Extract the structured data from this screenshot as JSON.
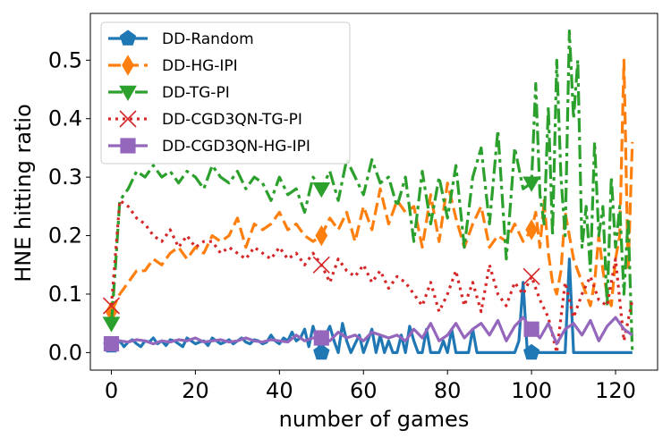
{
  "chart_data": {
    "type": "line",
    "xlabel": "number of games",
    "ylabel": "HNE hitting ratio",
    "xlim": [
      -5,
      130
    ],
    "ylim": [
      -0.03,
      0.58
    ],
    "xticks": [
      0,
      20,
      40,
      60,
      80,
      100,
      120
    ],
    "yticks": [
      0.0,
      0.1,
      0.2,
      0.3,
      0.4,
      0.5
    ],
    "ytick_labels": [
      "0.0",
      "0.1",
      "0.2",
      "0.3",
      "0.4",
      "0.5"
    ],
    "legend_position": "upper-left",
    "series": [
      {
        "name": "DD-Random",
        "color": "#1f77b4",
        "linestyle": "solid",
        "marker": "pentagon",
        "marker_x": [
          0,
          50,
          100
        ],
        "x": [
          0,
          1,
          2,
          3,
          4,
          5,
          6,
          7,
          8,
          9,
          10,
          11,
          12,
          13,
          14,
          15,
          16,
          17,
          18,
          19,
          20,
          21,
          22,
          23,
          24,
          25,
          26,
          27,
          28,
          29,
          30,
          31,
          32,
          33,
          34,
          35,
          36,
          37,
          38,
          39,
          40,
          41,
          42,
          43,
          44,
          45,
          46,
          47,
          48,
          49,
          50,
          51,
          52,
          53,
          54,
          55,
          56,
          57,
          58,
          59,
          60,
          61,
          62,
          63,
          64,
          65,
          66,
          67,
          68,
          69,
          70,
          71,
          72,
          73,
          74,
          75,
          76,
          77,
          78,
          79,
          80,
          81,
          82,
          83,
          84,
          85,
          86,
          87,
          88,
          89,
          90,
          91,
          92,
          93,
          94,
          95,
          96,
          97,
          98,
          99,
          100,
          101,
          102,
          103,
          104,
          105,
          106,
          107,
          108,
          109,
          110,
          111,
          112,
          113,
          114,
          115,
          116,
          117,
          118,
          119,
          120,
          121,
          122,
          123,
          124
        ],
        "values": [
          0.012,
          0.015,
          0.02,
          0.01,
          0.018,
          0.022,
          0.015,
          0.01,
          0.02,
          0.018,
          0.025,
          0.015,
          0.02,
          0.012,
          0.022,
          0.02,
          0.015,
          0.01,
          0.025,
          0.02,
          0.015,
          0.018,
          0.02,
          0.012,
          0.025,
          0.02,
          0.015,
          0.018,
          0.022,
          0.015,
          0.02,
          0.025,
          0.018,
          0.015,
          0.022,
          0.02,
          0.015,
          0.018,
          0.03,
          0.02,
          0.015,
          0.025,
          0.02,
          0.035,
          0.02,
          0.025,
          0.04,
          0.01,
          0.045,
          0.02,
          0.0,
          0.03,
          0.045,
          0.02,
          0.0,
          0.05,
          0.02,
          0.0,
          0.015,
          0.03,
          0.0,
          0.02,
          0.04,
          0.0,
          0.03,
          0.0,
          0.02,
          0.0,
          0.0,
          0.03,
          0.0,
          0.045,
          0.02,
          0.0,
          0.0,
          0.04,
          0.0,
          0.0,
          0.0,
          0.02,
          0.0,
          0.04,
          0.0,
          0.0,
          0.0,
          0.0,
          0.04,
          0.0,
          0.0,
          0.0,
          0.0,
          0.0,
          0.0,
          0.0,
          0.0,
          0.0,
          0.0,
          0.02,
          0.12,
          0.0,
          0.0,
          0.0,
          0.0,
          0.0,
          0.0,
          0.0,
          0.0,
          0.0,
          0.0,
          0.16,
          0.0,
          0.0,
          0.0,
          0.0,
          0.0,
          0.0,
          0.0,
          0.0,
          0.0,
          0.0,
          0.0,
          0.0,
          0.0,
          0.0,
          0.0
        ]
      },
      {
        "name": "DD-HG-IPI",
        "color": "#ff7f0e",
        "linestyle": "dashed",
        "marker": "thin_diamond",
        "marker_x": [
          0,
          50,
          100
        ],
        "x": [
          0,
          2,
          4,
          6,
          8,
          10,
          12,
          14,
          16,
          18,
          20,
          22,
          24,
          26,
          28,
          30,
          32,
          34,
          36,
          38,
          40,
          42,
          44,
          46,
          48,
          50,
          52,
          54,
          56,
          58,
          60,
          62,
          64,
          66,
          68,
          70,
          72,
          74,
          76,
          78,
          80,
          82,
          84,
          86,
          88,
          90,
          92,
          94,
          96,
          98,
          100,
          101,
          102,
          103,
          104,
          105,
          106,
          107,
          108,
          109,
          110,
          111,
          112,
          113,
          114,
          115,
          116,
          117,
          118,
          119,
          120,
          121,
          122,
          123,
          124
        ],
        "values": [
          0.07,
          0.1,
          0.12,
          0.14,
          0.14,
          0.16,
          0.15,
          0.17,
          0.18,
          0.16,
          0.18,
          0.17,
          0.2,
          0.19,
          0.2,
          0.23,
          0.18,
          0.22,
          0.21,
          0.22,
          0.24,
          0.21,
          0.22,
          0.2,
          0.19,
          0.2,
          0.23,
          0.21,
          0.24,
          0.19,
          0.25,
          0.21,
          0.28,
          0.22,
          0.26,
          0.24,
          0.25,
          0.18,
          0.27,
          0.19,
          0.29,
          0.23,
          0.18,
          0.22,
          0.25,
          0.18,
          0.2,
          0.19,
          0.22,
          0.19,
          0.21,
          0.24,
          0.18,
          0.26,
          0.17,
          0.12,
          0.1,
          0.14,
          0.24,
          0.2,
          0.16,
          0.14,
          0.12,
          0.1,
          0.08,
          0.12,
          0.2,
          0.14,
          0.1,
          0.08,
          0.16,
          0.2,
          0.5,
          0.14,
          0.36
        ]
      },
      {
        "name": "DD-TG-PI",
        "color": "#2ca02c",
        "linestyle": "dashdot",
        "marker": "triangle_down",
        "marker_x": [
          0,
          50,
          100
        ],
        "x": [
          0,
          1,
          2,
          4,
          6,
          8,
          10,
          12,
          14,
          16,
          18,
          20,
          22,
          24,
          26,
          28,
          30,
          32,
          34,
          36,
          38,
          40,
          42,
          44,
          46,
          48,
          50,
          52,
          54,
          56,
          58,
          60,
          62,
          64,
          66,
          68,
          70,
          72,
          74,
          76,
          78,
          80,
          82,
          84,
          86,
          88,
          90,
          92,
          94,
          96,
          98,
          100,
          101,
          102,
          103,
          104,
          105,
          106,
          107,
          108,
          109,
          110,
          111,
          112,
          113,
          114,
          115,
          116,
          117,
          118,
          119,
          120,
          121,
          122,
          123,
          124
        ],
        "values": [
          0.05,
          0.15,
          0.26,
          0.28,
          0.31,
          0.3,
          0.32,
          0.3,
          0.31,
          0.29,
          0.31,
          0.3,
          0.28,
          0.32,
          0.3,
          0.29,
          0.31,
          0.28,
          0.3,
          0.29,
          0.26,
          0.3,
          0.27,
          0.28,
          0.24,
          0.3,
          0.28,
          0.31,
          0.26,
          0.33,
          0.3,
          0.27,
          0.33,
          0.29,
          0.3,
          0.25,
          0.3,
          0.19,
          0.31,
          0.22,
          0.3,
          0.23,
          0.32,
          0.18,
          0.3,
          0.35,
          0.22,
          0.38,
          0.16,
          0.35,
          0.28,
          0.29,
          0.46,
          0.27,
          0.22,
          0.42,
          0.2,
          0.5,
          0.3,
          0.2,
          0.55,
          0.4,
          0.5,
          0.18,
          0.25,
          0.14,
          0.36,
          0.2,
          0.25,
          0.08,
          0.3,
          0.18,
          0.25,
          0.1,
          0.23,
          0.0
        ]
      },
      {
        "name": "DD-CGD3QN-TG-PI",
        "color": "#d62728",
        "linestyle": "dotted",
        "marker": "x",
        "marker_x": [
          0,
          50,
          100
        ],
        "x": [
          0,
          2,
          4,
          6,
          8,
          10,
          12,
          14,
          16,
          18,
          20,
          22,
          24,
          26,
          28,
          30,
          32,
          34,
          36,
          38,
          40,
          42,
          44,
          46,
          48,
          50,
          52,
          54,
          56,
          58,
          60,
          62,
          64,
          66,
          68,
          70,
          72,
          74,
          76,
          78,
          80,
          82,
          84,
          86,
          88,
          90,
          92,
          94,
          96,
          98,
          100,
          102,
          104,
          106,
          108,
          110,
          112,
          114,
          116,
          118,
          120,
          122,
          124
        ],
        "values": [
          0.08,
          0.26,
          0.25,
          0.23,
          0.22,
          0.2,
          0.19,
          0.21,
          0.18,
          0.2,
          0.18,
          0.19,
          0.19,
          0.17,
          0.18,
          0.17,
          0.16,
          0.18,
          0.17,
          0.16,
          0.18,
          0.16,
          0.17,
          0.15,
          0.17,
          0.15,
          0.12,
          0.16,
          0.14,
          0.13,
          0.15,
          0.12,
          0.14,
          0.11,
          0.13,
          0.12,
          0.1,
          0.08,
          0.12,
          0.07,
          0.1,
          0.14,
          0.08,
          0.12,
          0.07,
          0.15,
          0.1,
          0.08,
          0.12,
          0.1,
          0.13,
          0.09,
          0.06,
          0.0,
          0.12,
          0.06,
          0.1,
          0.13,
          0.09,
          0.08,
          0.16,
          0.02,
          0.09
        ]
      },
      {
        "name": "DD-CGD3QN-HG-IPI",
        "color": "#9467bd",
        "linestyle": "solid",
        "marker": "square",
        "marker_x": [
          0,
          50,
          100
        ],
        "x": [
          0,
          2,
          4,
          6,
          8,
          10,
          12,
          14,
          16,
          18,
          20,
          22,
          24,
          26,
          28,
          30,
          32,
          34,
          36,
          38,
          40,
          42,
          44,
          46,
          48,
          50,
          52,
          54,
          56,
          58,
          60,
          62,
          64,
          66,
          68,
          70,
          72,
          74,
          76,
          78,
          80,
          82,
          84,
          86,
          88,
          90,
          92,
          94,
          96,
          98,
          100,
          102,
          104,
          106,
          108,
          110,
          112,
          114,
          116,
          118,
          120,
          122,
          124
        ],
        "values": [
          0.015,
          0.02,
          0.018,
          0.022,
          0.02,
          0.015,
          0.02,
          0.018,
          0.022,
          0.02,
          0.025,
          0.018,
          0.02,
          0.022,
          0.018,
          0.02,
          0.025,
          0.02,
          0.018,
          0.022,
          0.02,
          0.018,
          0.03,
          0.02,
          0.025,
          0.025,
          0.02,
          0.035,
          0.025,
          0.03,
          0.02,
          0.035,
          0.03,
          0.025,
          0.03,
          0.02,
          0.04,
          0.025,
          0.05,
          0.02,
          0.03,
          0.05,
          0.025,
          0.04,
          0.05,
          0.03,
          0.055,
          0.02,
          0.045,
          0.06,
          0.04,
          0.025,
          0.05,
          0.015,
          0.04,
          0.05,
          0.03,
          0.055,
          0.02,
          0.045,
          0.06,
          0.04,
          0.03
        ]
      }
    ]
  }
}
